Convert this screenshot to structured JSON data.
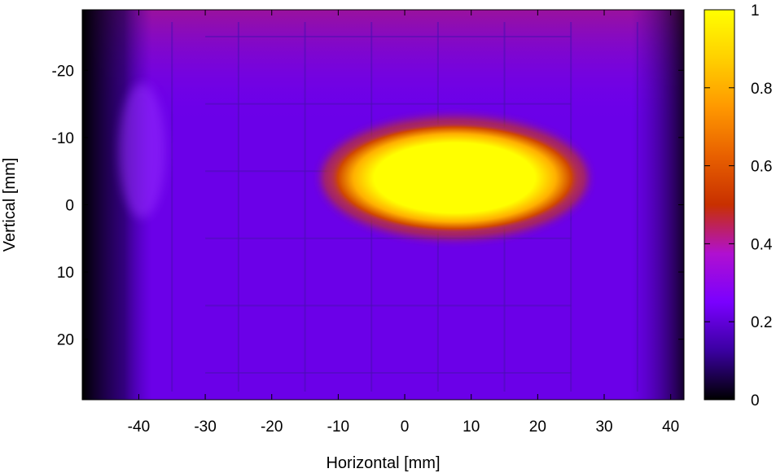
{
  "chart_data": {
    "type": "heatmap",
    "title": "",
    "xlabel": "Horizontal [mm]",
    "ylabel": "Vertical [mm]",
    "xlim": [
      -48.5,
      42
    ],
    "ylim": [
      -29,
      29
    ],
    "y_inverted": true,
    "x_ticks": [
      -40,
      -30,
      -20,
      -10,
      0,
      10,
      20,
      30,
      40
    ],
    "x_tick_labels": [
      "-40",
      "-30",
      "-20",
      "-10",
      "0",
      "10",
      "20",
      "30",
      "40"
    ],
    "y_ticks": [
      -20,
      -10,
      0,
      10,
      20
    ],
    "y_tick_labels": [
      "-20",
      "-10",
      "0",
      "10",
      "20"
    ],
    "colorbar": {
      "min": 0,
      "max": 1,
      "ticks": [
        0,
        0.2,
        0.4,
        0.6,
        0.8,
        1
      ],
      "tick_labels": [
        "0",
        "0.2",
        "0.4",
        "0.6",
        "0.8",
        "1"
      ],
      "palette": [
        "#000000",
        "#3a00a0",
        "#7a00ff",
        "#b010d0",
        "#c83000",
        "#e86000",
        "#ff9800",
        "#ffd000",
        "#ffff00"
      ]
    },
    "grid": false,
    "background_level": 0.22,
    "hot_region": {
      "x_range": [
        -12,
        27
      ],
      "y_range": [
        -12,
        4
      ],
      "peak_x": 5,
      "peak_y": -4,
      "peak_value": 1.0
    },
    "segmentation_pitch_mm": 10
  }
}
